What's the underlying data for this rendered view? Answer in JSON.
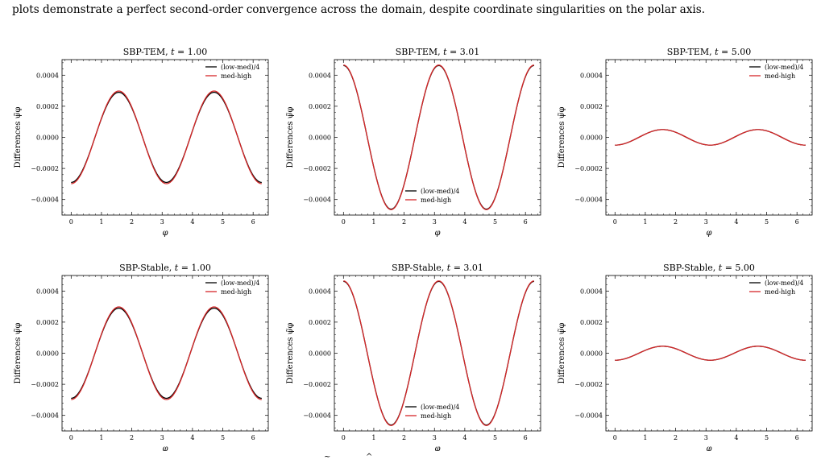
{
  "caption": {
    "visible_text": "plots demonstrate a perfect second-order convergence across the domain, despite coordinate singularities on the polar axis."
  },
  "colors": {
    "low_med": "#000000",
    "med_high": "#d62728",
    "axes": "#000000"
  },
  "chart_data": [
    {
      "type": "line",
      "title": "SBP-TEM, t = 1.00",
      "title_prefix": "SBP-TEM,",
      "title_time": "= 1.00",
      "xlabel": "φ",
      "ylabel": "Differences ψ̃φ",
      "xlim": [
        -0.3,
        6.5
      ],
      "ylim": [
        -0.0005,
        0.0005
      ],
      "xticks": [
        0,
        1,
        2,
        3,
        4,
        5,
        6
      ],
      "yticks": [
        -0.0004,
        -0.0002,
        0.0,
        0.0002,
        0.0004
      ],
      "ytick_labels": [
        "−0.0004",
        "−0.0002",
        "0.0000",
        "0.0002",
        "0.0004"
      ],
      "legend_position": "top-right",
      "series": [
        {
          "name": "(low-med)/4",
          "color": "#000000",
          "amplitude": 0.00029,
          "freq": 2,
          "phase": "neg-cos"
        },
        {
          "name": "med-high",
          "color": "#d62728",
          "amplitude": 0.000298,
          "freq": 2,
          "phase": "neg-cos"
        }
      ]
    },
    {
      "type": "line",
      "title": "SBP-TEM, t = 3.01",
      "title_prefix": "SBP-TEM,",
      "title_time": "= 3.01",
      "xlabel": "φ",
      "ylabel": "Differences ψ̃φ",
      "xlim": [
        -0.3,
        6.5
      ],
      "ylim": [
        -0.0005,
        0.0005
      ],
      "xticks": [
        0,
        1,
        2,
        3,
        4,
        5,
        6
      ],
      "yticks": [
        -0.0004,
        -0.0002,
        0.0,
        0.0002,
        0.0004
      ],
      "ytick_labels": [
        "−0.0004",
        "−0.0002",
        "0.0000",
        "0.0002",
        "0.0004"
      ],
      "legend_position": "bottom-center",
      "series": [
        {
          "name": "(low-med)/4",
          "color": "#000000",
          "amplitude": 0.000462,
          "freq": 2,
          "phase": "cos"
        },
        {
          "name": "med-high",
          "color": "#d62728",
          "amplitude": 0.000465,
          "freq": 2,
          "phase": "cos"
        }
      ]
    },
    {
      "type": "line",
      "title": "SBP-TEM, t = 5.00",
      "title_prefix": "SBP-TEM,",
      "title_time": "= 5.00",
      "xlabel": "φ",
      "ylabel": "Differences ψ̃φ",
      "xlim": [
        -0.3,
        6.5
      ],
      "ylim": [
        -0.0005,
        0.0005
      ],
      "xticks": [
        0,
        1,
        2,
        3,
        4,
        5,
        6
      ],
      "yticks": [
        -0.0004,
        -0.0002,
        0.0,
        0.0002,
        0.0004
      ],
      "ytick_labels": [
        "−0.0004",
        "−0.0002",
        "0.0000",
        "0.0002",
        "0.0004"
      ],
      "legend_position": "top-right",
      "series": [
        {
          "name": "(low-med)/4",
          "color": "#000000",
          "amplitude": 5e-05,
          "freq": 2,
          "phase": "neg-cos"
        },
        {
          "name": "med-high",
          "color": "#d62728",
          "amplitude": 5e-05,
          "freq": 2,
          "phase": "neg-cos"
        }
      ]
    },
    {
      "type": "line",
      "title": "SBP-Stable, t = 1.00",
      "title_prefix": "SBP-Stable,",
      "title_time": "= 1.00",
      "xlabel": "φ",
      "ylabel": "Differences ψ̃φ",
      "xlim": [
        -0.3,
        6.5
      ],
      "ylim": [
        -0.0005,
        0.0005
      ],
      "xticks": [
        0,
        1,
        2,
        3,
        4,
        5,
        6
      ],
      "yticks": [
        -0.0004,
        -0.0002,
        0.0,
        0.0002,
        0.0004
      ],
      "ytick_labels": [
        "−0.0004",
        "−0.0002",
        "0.0000",
        "0.0002",
        "0.0004"
      ],
      "legend_position": "top-right",
      "series": [
        {
          "name": "(low-med)/4",
          "color": "#000000",
          "amplitude": 0.00029,
          "freq": 2,
          "phase": "neg-cos"
        },
        {
          "name": "med-high",
          "color": "#d62728",
          "amplitude": 0.000298,
          "freq": 2,
          "phase": "neg-cos"
        }
      ]
    },
    {
      "type": "line",
      "title": "SBP-Stable, t = 3.01",
      "title_prefix": "SBP-Stable,",
      "title_time": "= 3.01",
      "xlabel": "φ",
      "ylabel": "Differences ψ̃φ",
      "xlim": [
        -0.3,
        6.5
      ],
      "ylim": [
        -0.0005,
        0.0005
      ],
      "xticks": [
        0,
        1,
        2,
        3,
        4,
        5,
        6
      ],
      "yticks": [
        -0.0004,
        -0.0002,
        0.0,
        0.0002,
        0.0004
      ],
      "ytick_labels": [
        "−0.0004",
        "−0.0002",
        "0.0000",
        "0.0002",
        "0.0004"
      ],
      "legend_position": "bottom-center",
      "series": [
        {
          "name": "(low-med)/4",
          "color": "#000000",
          "amplitude": 0.000462,
          "freq": 2,
          "phase": "cos"
        },
        {
          "name": "med-high",
          "color": "#d62728",
          "amplitude": 0.000465,
          "freq": 2,
          "phase": "cos"
        }
      ]
    },
    {
      "type": "line",
      "title": "SBP-Stable, t = 5.00",
      "title_prefix": "SBP-Stable,",
      "title_time": "= 5.00",
      "xlabel": "φ",
      "ylabel": "Differences ψ̃φ",
      "xlim": [
        -0.3,
        6.5
      ],
      "ylim": [
        -0.0005,
        0.0005
      ],
      "xticks": [
        0,
        1,
        2,
        3,
        4,
        5,
        6
      ],
      "yticks": [
        -0.0004,
        -0.0002,
        0.0,
        0.0002,
        0.0004
      ],
      "ytick_labels": [
        "−0.0004",
        "−0.0002",
        "0.0000",
        "0.0002",
        "0.0004"
      ],
      "legend_position": "top-right",
      "series": [
        {
          "name": "(low-med)/4",
          "color": "#000000",
          "amplitude": 4.5e-05,
          "freq": 2,
          "phase": "neg-cos"
        },
        {
          "name": "med-high",
          "color": "#d62728",
          "amplitude": 4.5e-05,
          "freq": 2,
          "phase": "neg-cos"
        }
      ]
    }
  ]
}
